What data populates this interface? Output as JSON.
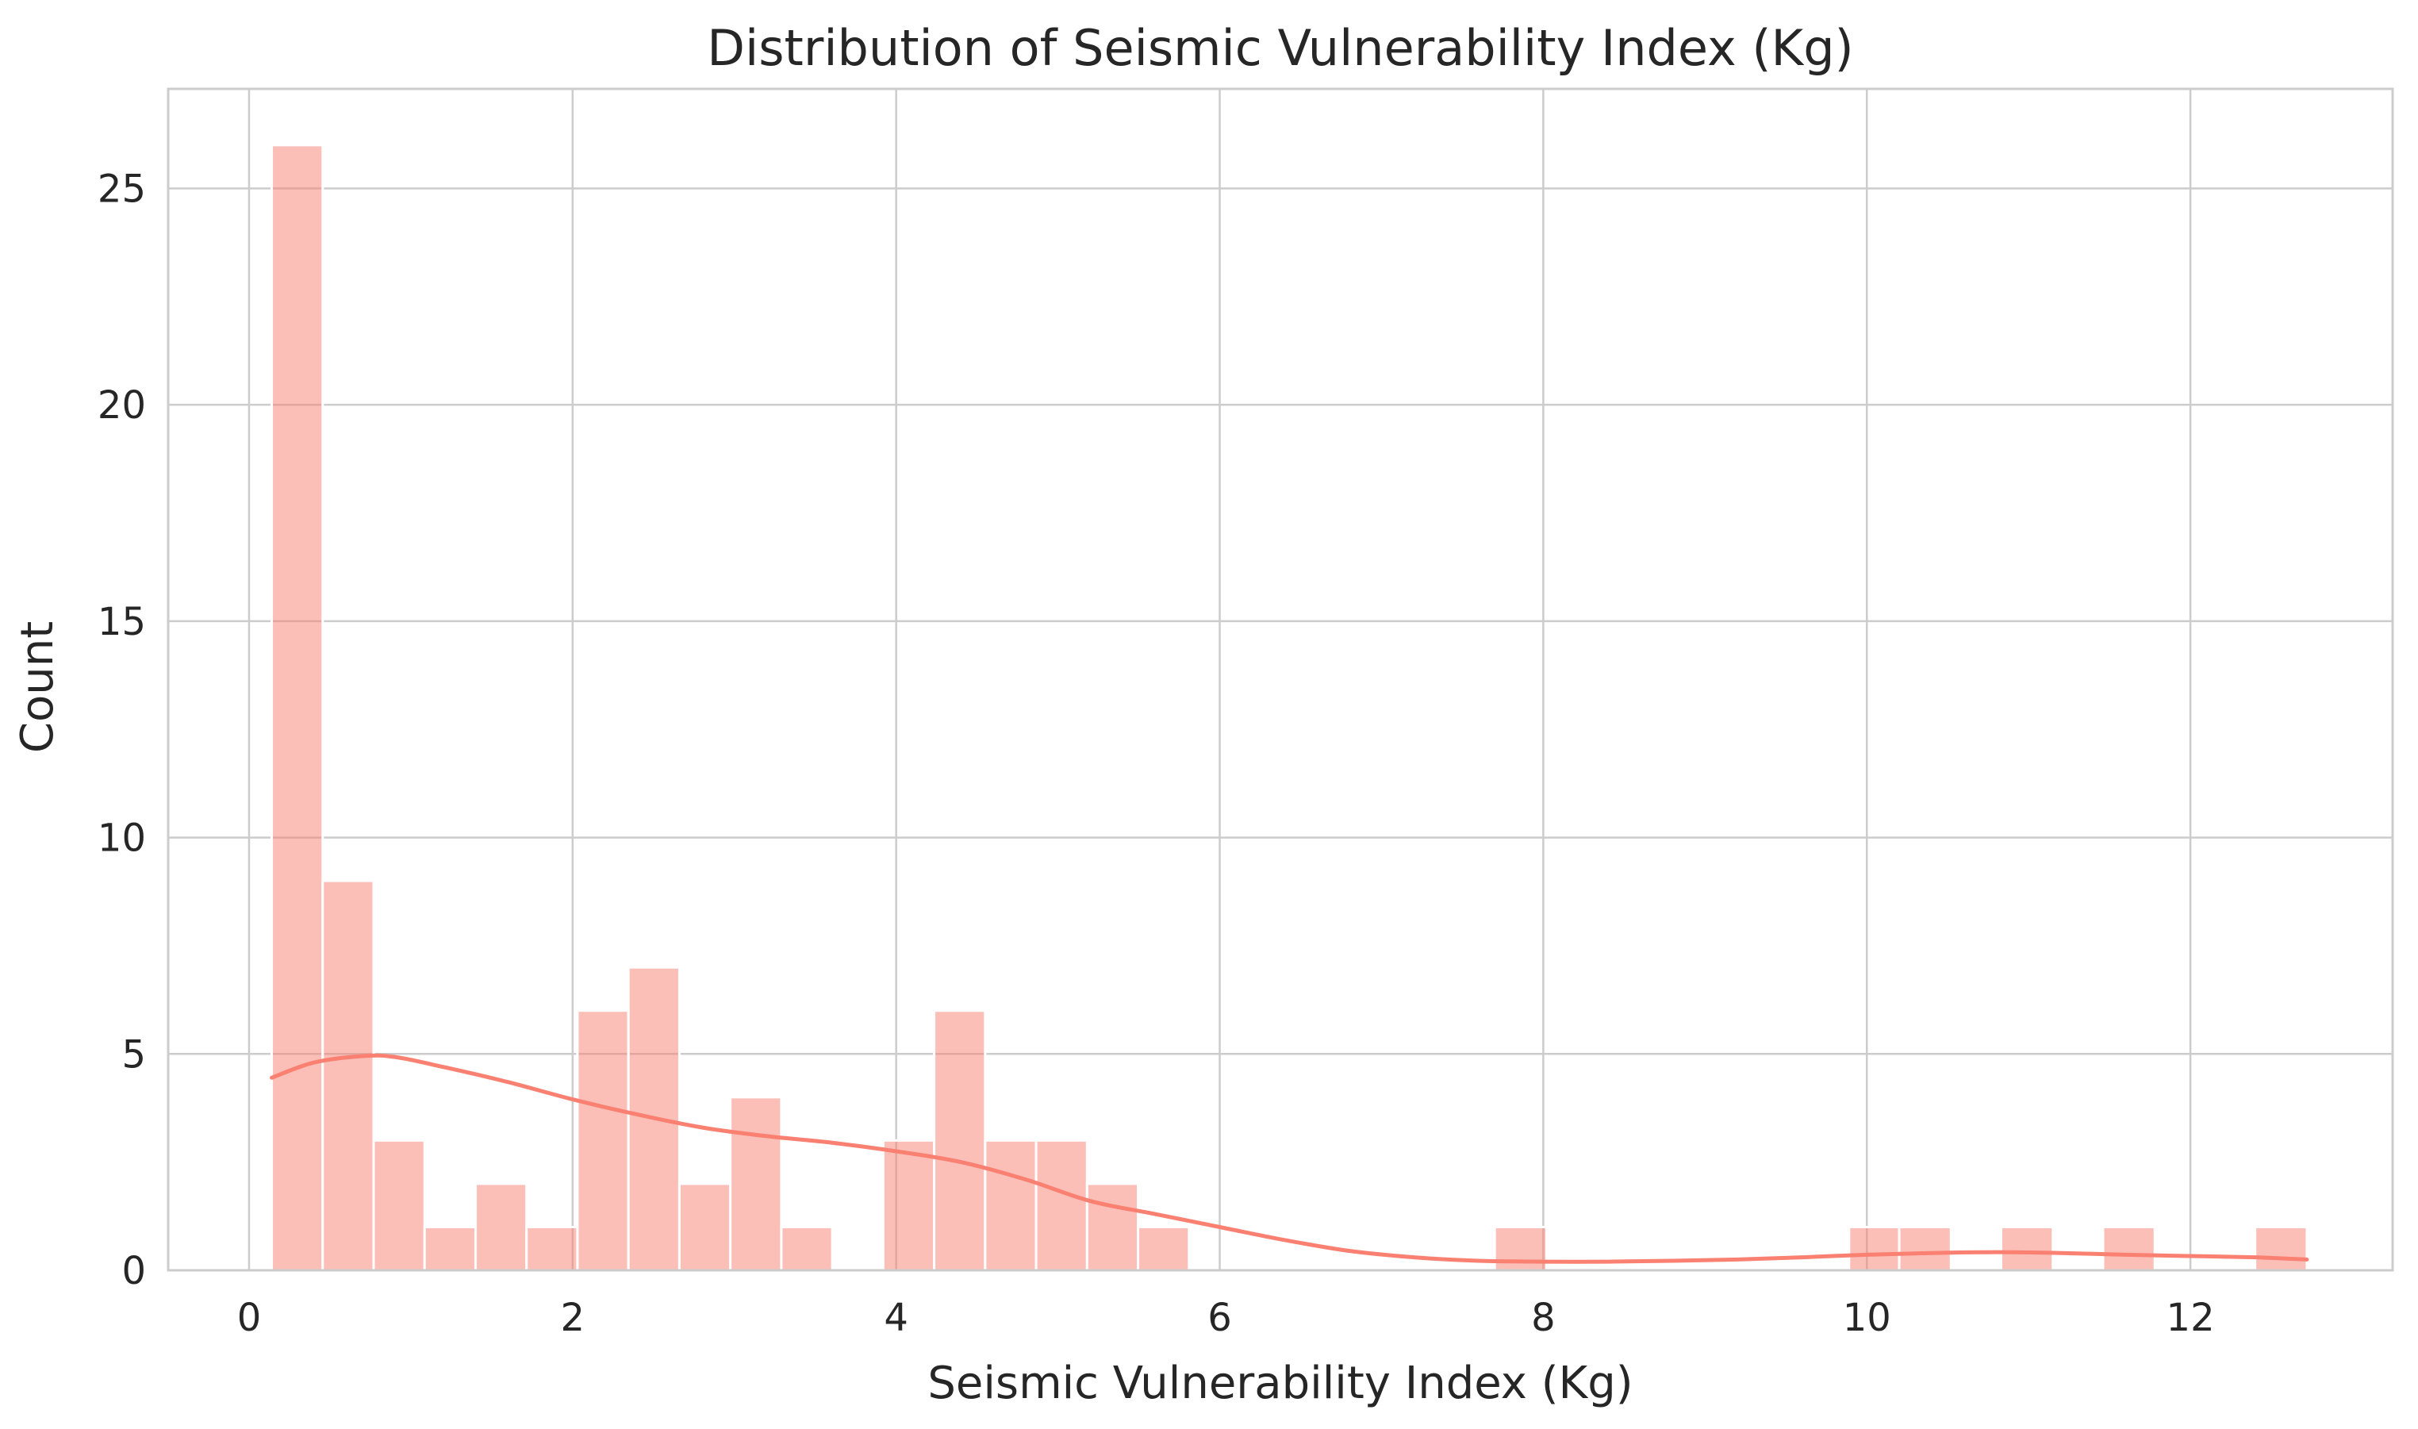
{
  "chart_data": {
    "type": "bar",
    "title": "Distribution of Seismic Vulnerability Index (Kg)",
    "xlabel": "Seismic Vulnerability Index (Kg)",
    "ylabel": "Count",
    "xlim": [
      -0.5,
      13.25
    ],
    "ylim": [
      0,
      27.3
    ],
    "xticks": [
      0,
      2,
      4,
      6,
      8,
      10,
      12
    ],
    "yticks": [
      0,
      5,
      10,
      15,
      20,
      25
    ],
    "grid": true,
    "bar_color": "#fa8072",
    "bar_opacity": 0.5,
    "kde_color": "#fa8072",
    "bins": [
      {
        "x0": 0.14,
        "x1": 0.455,
        "count": 26
      },
      {
        "x0": 0.455,
        "x1": 0.77,
        "count": 9
      },
      {
        "x0": 0.77,
        "x1": 1.085,
        "count": 3
      },
      {
        "x0": 1.085,
        "x1": 1.4,
        "count": 1
      },
      {
        "x0": 1.4,
        "x1": 1.715,
        "count": 2
      },
      {
        "x0": 1.715,
        "x1": 2.03,
        "count": 1
      },
      {
        "x0": 2.03,
        "x1": 2.345,
        "count": 6
      },
      {
        "x0": 2.345,
        "x1": 2.66,
        "count": 7
      },
      {
        "x0": 2.66,
        "x1": 2.975,
        "count": 2
      },
      {
        "x0": 2.975,
        "x1": 3.29,
        "count": 4
      },
      {
        "x0": 3.29,
        "x1": 3.605,
        "count": 1
      },
      {
        "x0": 3.92,
        "x1": 4.235,
        "count": 3
      },
      {
        "x0": 4.235,
        "x1": 4.55,
        "count": 6
      },
      {
        "x0": 4.55,
        "x1": 4.865,
        "count": 3
      },
      {
        "x0": 4.865,
        "x1": 5.18,
        "count": 3
      },
      {
        "x0": 5.18,
        "x1": 5.495,
        "count": 2
      },
      {
        "x0": 5.495,
        "x1": 5.81,
        "count": 1
      },
      {
        "x0": 7.7,
        "x1": 8.02,
        "count": 1
      },
      {
        "x0": 9.89,
        "x1": 10.2,
        "count": 1
      },
      {
        "x0": 10.2,
        "x1": 10.52,
        "count": 1
      },
      {
        "x0": 10.83,
        "x1": 11.15,
        "count": 1
      },
      {
        "x0": 11.46,
        "x1": 11.78,
        "count": 1
      },
      {
        "x0": 12.4,
        "x1": 12.72,
        "count": 1
      }
    ],
    "kde": {
      "x": [
        0.14,
        0.4,
        0.7,
        0.9,
        1.2,
        1.6,
        2.0,
        2.4,
        2.8,
        3.2,
        3.6,
        4.0,
        4.4,
        4.8,
        5.2,
        5.6,
        6.0,
        6.4,
        6.8,
        7.2,
        7.6,
        8.0,
        8.4,
        8.8,
        9.2,
        9.6,
        10.0,
        10.4,
        10.8,
        11.2,
        11.6,
        12.0,
        12.4,
        12.72
      ],
      "y": [
        4.45,
        4.8,
        4.95,
        4.93,
        4.7,
        4.35,
        3.95,
        3.6,
        3.3,
        3.1,
        2.95,
        2.75,
        2.5,
        2.1,
        1.6,
        1.3,
        1.0,
        0.7,
        0.45,
        0.3,
        0.22,
        0.2,
        0.2,
        0.22,
        0.25,
        0.3,
        0.36,
        0.4,
        0.42,
        0.4,
        0.36,
        0.33,
        0.3,
        0.25
      ]
    }
  }
}
